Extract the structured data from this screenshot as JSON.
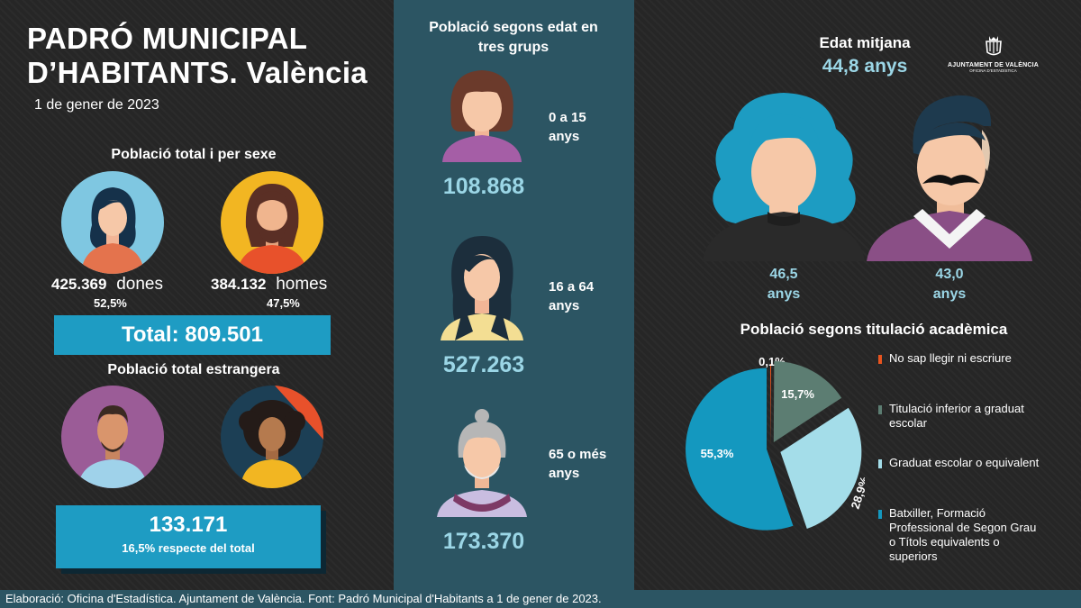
{
  "title_line1": "PADRÓ MUNICIPAL",
  "title_line2": "D’HABITANTS. València",
  "date": "1 de gener de 2023",
  "sex": {
    "heading": "Població total i per sexe",
    "women_value": "425.369",
    "women_label": "dones",
    "women_pct": "52,5%",
    "men_value": "384.132",
    "men_label": "homes",
    "men_pct": "47,5%",
    "total": "Total: 809.501"
  },
  "foreign": {
    "heading": "Població total estrangera",
    "value": "133.171",
    "note": "16,5% respecte del total"
  },
  "age_groups": {
    "heading_line1": "Població segons edat en",
    "heading_line2": "tres grups",
    "groups": [
      {
        "label_line1": "0 a 15",
        "label_line2": "anys",
        "value": "108.868"
      },
      {
        "label_line1": "16 a 64",
        "label_line2": "anys",
        "value": "527.263"
      },
      {
        "label_line1": "65 o més",
        "label_line2": "anys",
        "value": "173.370"
      }
    ]
  },
  "median_age": {
    "heading": "Edat mitjana",
    "value": "44,8 anys",
    "women_value": "46,5",
    "women_unit": "anys",
    "men_value": "43,0",
    "men_unit": "anys"
  },
  "logo": {
    "name": "AJUNTAMENT DE VALÈNCIA",
    "sub": "OFICINA D'ESTADÍSTICA"
  },
  "footer": "Elaboració: Oficina d'Estadística. Ajuntament de València. Font: Padró Municipal d'Habitants a 1 de gener de 2023.",
  "colors": {
    "teal_dark": "#2c5563",
    "accent_blue": "#1e9cc3",
    "light_teal": "#9bd6e6"
  },
  "chart_data": {
    "type": "pie",
    "title": "Població segons titulació acadèmica",
    "categories": [
      "No sap llegir ni escriure",
      "Titulació inferior a graduat escolar",
      "Graduat escolar o equivalent",
      "Batxiller, Formació Professional de Segon Grau o Títols equivalents o superiors"
    ],
    "values": [
      0.1,
      15.7,
      28.9,
      55.3
    ],
    "value_labels": [
      "0,1%",
      "15,7%",
      "28,9%",
      "55,3%"
    ],
    "colors": [
      "#e8541f",
      "#5c7d72",
      "#a4dde9",
      "#1498bf"
    ],
    "legend_lines": [
      [
        "No sap llegir ni escriure"
      ],
      [
        "Titulació inferior a graduat",
        "escolar"
      ],
      [
        "Graduat escolar o equivalent"
      ],
      [
        "Batxiller, Formació",
        "Professional de Segon Grau",
        "o Títols equivalents o",
        "superiors"
      ]
    ],
    "legend_position": "right"
  }
}
